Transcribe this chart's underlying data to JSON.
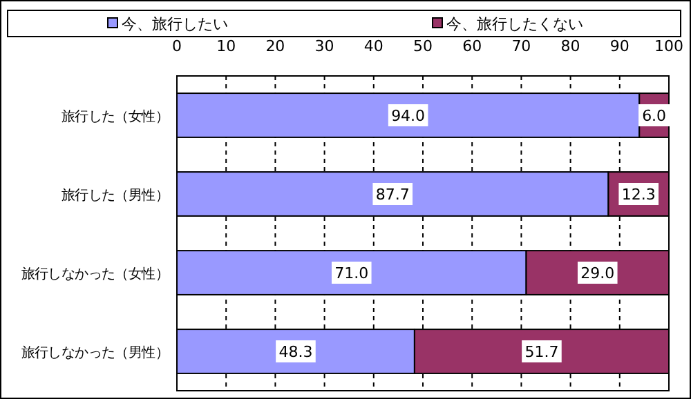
{
  "chart_data": {
    "type": "bar",
    "orientation": "horizontal",
    "stacked": true,
    "categories": [
      "旅行した（女性）",
      "旅行した（男性）",
      "旅行しなかった（女性）",
      "旅行しなかった（男性）"
    ],
    "series": [
      {
        "name": "今、旅行したい",
        "color": "#9999ff",
        "values": [
          94.0,
          87.7,
          71.0,
          48.3
        ],
        "value_labels": [
          "94.0",
          "87.7",
          "71.0",
          "48.3"
        ]
      },
      {
        "name": "今、旅行したくない",
        "color": "#993366",
        "values": [
          6.0,
          12.3,
          29.0,
          51.7
        ],
        "value_labels": [
          "6.0",
          "12.3",
          "29.0",
          "51.7"
        ]
      }
    ],
    "xlim": [
      0,
      100
    ],
    "xticks": [
      0,
      10,
      20,
      30,
      40,
      50,
      60,
      70,
      80,
      90,
      100
    ],
    "grid": "x",
    "legend": "top"
  }
}
